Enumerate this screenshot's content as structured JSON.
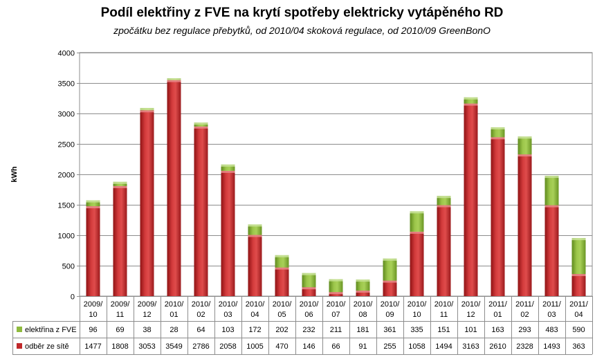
{
  "chart_data": {
    "type": "bar",
    "stacked": true,
    "title": "Podíl elektřiny z FVE na krytí spotřeby elektricky vytápěného RD",
    "subtitle": "zpočátku bez regulace přebytků, od 2010/04 skoková regulace, od 2010/09 GreenBonO",
    "ylabel": "kWh",
    "ylim": [
      0,
      4000
    ],
    "yticks": [
      "0",
      "500",
      "1000",
      "1500",
      "2000",
      "2500",
      "3000",
      "3500",
      "4000"
    ],
    "grid": true,
    "categories": [
      [
        "2009/",
        "10"
      ],
      [
        "2009/",
        "11"
      ],
      [
        "2009/",
        "12"
      ],
      [
        "2010/",
        "01"
      ],
      [
        "2010/",
        "02"
      ],
      [
        "2010/",
        "03"
      ],
      [
        "2010/",
        "04"
      ],
      [
        "2010/",
        "05"
      ],
      [
        "2010/",
        "06"
      ],
      [
        "2010/",
        "07"
      ],
      [
        "2010/",
        "08"
      ],
      [
        "2010/",
        "09"
      ],
      [
        "2010/",
        "10"
      ],
      [
        "2010/",
        "11"
      ],
      [
        "2010/",
        "12"
      ],
      [
        "2011/",
        "01"
      ],
      [
        "2011/",
        "02"
      ],
      [
        "2011/",
        "03"
      ],
      [
        "2011/",
        "04"
      ]
    ],
    "series": [
      {
        "name": "odběr ze sítě",
        "color": "#c0282a",
        "values": [
          1477,
          1808,
          3053,
          3549,
          2786,
          2058,
          1005,
          470,
          146,
          66,
          91,
          255,
          1058,
          1494,
          3163,
          2610,
          2328,
          1493,
          363
        ]
      },
      {
        "name": "elektřina z FVE",
        "color": "#8fba3e",
        "values": [
          96,
          69,
          38,
          28,
          64,
          103,
          172,
          202,
          232,
          211,
          181,
          361,
          335,
          151,
          101,
          163,
          293,
          483,
          590
        ]
      }
    ],
    "data_table": true
  }
}
